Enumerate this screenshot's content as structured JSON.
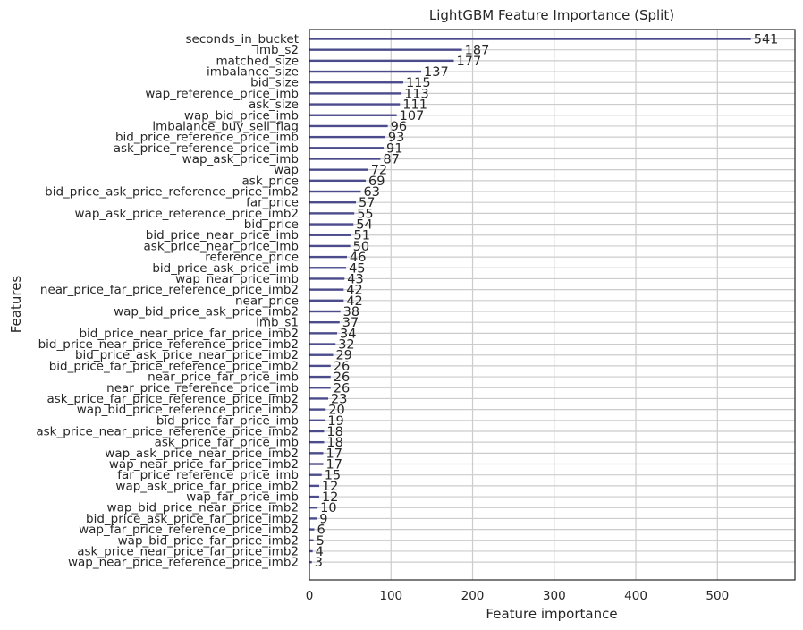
{
  "chart_data": {
    "type": "bar",
    "orientation": "horizontal",
    "title": "LightGBM Feature Importance (Split)",
    "xlabel": "Feature importance",
    "ylabel": "Features",
    "xlim": [
      0,
      595
    ],
    "xticks": [
      0,
      100,
      200,
      300,
      400,
      500
    ],
    "grid": true,
    "bar_color": "#4c4c8c",
    "grid_color": "#cccccc",
    "categories": [
      "seconds_in_bucket",
      "imb_s2",
      "matched_size",
      "imbalance_size",
      "bid_size",
      "wap_reference_price_imb",
      "ask_size",
      "wap_bid_price_imb",
      "imbalance_buy_sell_flag",
      "bid_price_reference_price_imb",
      "ask_price_reference_price_imb",
      "wap_ask_price_imb",
      "wap",
      "ask_price",
      "bid_price_ask_price_reference_price_imb2",
      "far_price",
      "wap_ask_price_reference_price_imb2",
      "bid_price",
      "bid_price_near_price_imb",
      "ask_price_near_price_imb",
      "reference_price",
      "bid_price_ask_price_imb",
      "wap_near_price_imb",
      "near_price_far_price_reference_price_imb2",
      "near_price",
      "wap_bid_price_ask_price_imb2",
      "imb_s1",
      "bid_price_near_price_far_price_imb2",
      "bid_price_near_price_reference_price_imb2",
      "bid_price_ask_price_near_price_imb2",
      "bid_price_far_price_reference_price_imb2",
      "near_price_far_price_imb",
      "near_price_reference_price_imb",
      "ask_price_far_price_reference_price_imb2",
      "wap_bid_price_reference_price_imb2",
      "bid_price_far_price_imb",
      "ask_price_near_price_reference_price_imb2",
      "ask_price_far_price_imb",
      "wap_ask_price_near_price_imb2",
      "wap_near_price_far_price_imb2",
      "far_price_reference_price_imb",
      "wap_ask_price_far_price_imb2",
      "wap_far_price_imb",
      "wap_bid_price_near_price_imb2",
      "bid_price_ask_price_far_price_imb2",
      "wap_far_price_reference_price_imb2",
      "wap_bid_price_far_price_imb2",
      "ask_price_near_price_far_price_imb2",
      "wap_near_price_reference_price_imb2"
    ],
    "values": [
      541,
      187,
      177,
      137,
      115,
      113,
      111,
      107,
      96,
      93,
      91,
      87,
      72,
      69,
      63,
      57,
      55,
      54,
      51,
      50,
      46,
      45,
      43,
      42,
      42,
      38,
      37,
      34,
      32,
      29,
      26,
      26,
      26,
      23,
      20,
      19,
      18,
      18,
      17,
      17,
      15,
      12,
      12,
      10,
      9,
      6,
      5,
      4,
      3
    ]
  }
}
